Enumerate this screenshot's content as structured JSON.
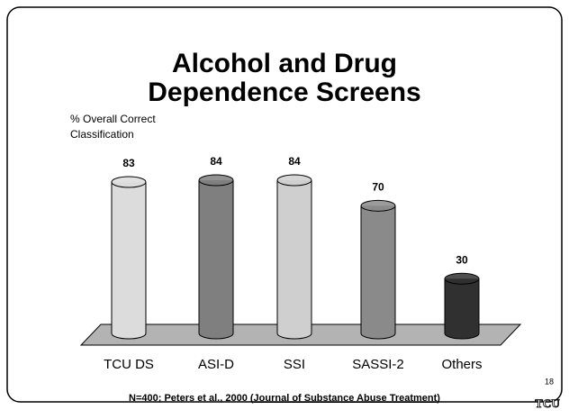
{
  "chart_data": {
    "type": "bar3d",
    "title_lines": [
      "Alcohol and Drug",
      "Dependence Screens"
    ],
    "y_label": "% Overall Correct Classification",
    "categories": [
      "TCU DS",
      "ASI-D",
      "SSI",
      "SASSI-2",
      "Others"
    ],
    "values": [
      83,
      84,
      84,
      70,
      30
    ],
    "colors": [
      "#dcdcdc",
      "#7f7f7f",
      "#cfcfcf",
      "#8a8a8a",
      "#303030"
    ]
  },
  "footer": {
    "prefix": "N=400; Peters et al., 2000 (",
    "source": "Journal of Substance Abuse Treatment",
    "suffix": ")"
  },
  "page_number": "18",
  "logo": "TCU"
}
